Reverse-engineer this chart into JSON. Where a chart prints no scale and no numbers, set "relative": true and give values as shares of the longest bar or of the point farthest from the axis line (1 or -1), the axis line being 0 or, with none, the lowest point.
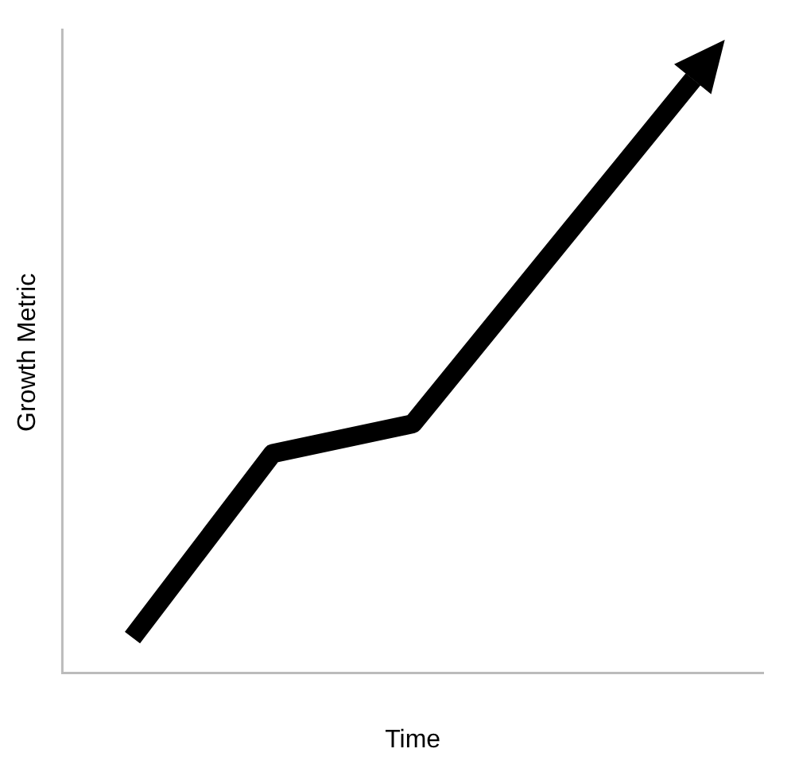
{
  "chart_data": {
    "type": "line",
    "relative": true,
    "xlabel": "Time",
    "ylabel": "Growth Metric",
    "categories": [
      null,
      null,
      null,
      null,
      null
    ],
    "series": [
      {
        "color": "#000000",
        "values": [
          0.06,
          0.37,
          0.42,
          0.71,
          1
        ]
      }
    ],
    "grid": false,
    "legend": false,
    "marker": "none",
    "line_style": "solid"
  }
}
